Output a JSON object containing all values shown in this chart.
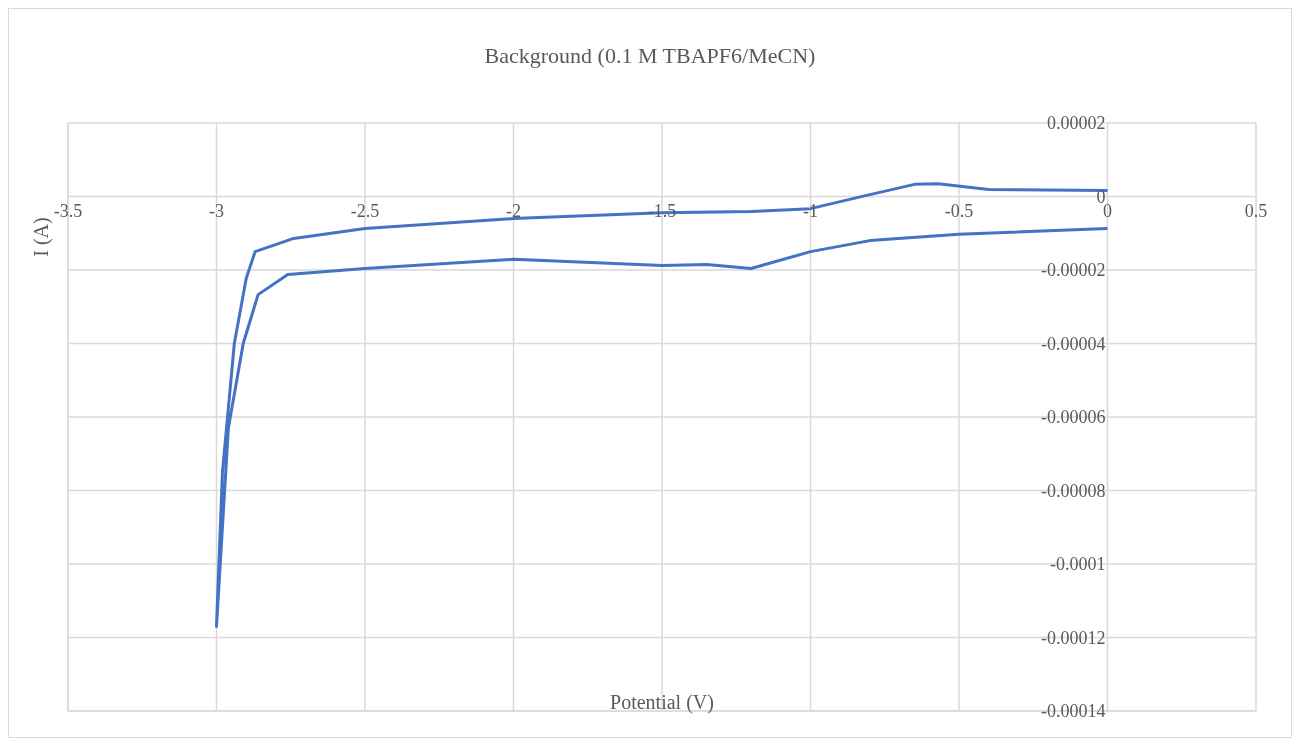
{
  "chart_data": {
    "type": "line",
    "title": "Background (0.1 M TBAPF6/MeCN)",
    "xlabel": "Potential (V)",
    "ylabel": "I (A)",
    "series": [
      {
        "color": "#4472c4",
        "x": [
          0,
          -0.5,
          -0.8,
          -1.0,
          -1.2,
          -1.35,
          -1.5,
          -2.0,
          -2.5,
          -2.76,
          -2.86,
          -2.91,
          -2.96,
          -3.0,
          -2.98,
          -2.94,
          -2.9,
          -2.87,
          -2.74,
          -2.5,
          -2.0,
          -1.5,
          -1.2,
          -1.0,
          -0.8,
          -0.65,
          -0.57,
          -0.4,
          0
        ],
        "values": [
          -8.7e-06,
          -1.03e-05,
          -1.2e-05,
          -1.5e-05,
          -1.96e-05,
          -1.85e-05,
          -1.88e-05,
          -1.71e-05,
          -1.96e-05,
          -2.12e-05,
          -2.67e-05,
          -4e-05,
          -6.3e-05,
          -0.000117,
          -7.5e-05,
          -4e-05,
          -2.23e-05,
          -1.5e-05,
          -1.14e-05,
          -8.7e-06,
          -6e-06,
          -4.4e-06,
          -4.1e-06,
          -3.3e-06,
          5e-07,
          3.3e-06,
          3.5e-06,
          1.9e-06,
          1.6e-06
        ]
      }
    ],
    "xlim": [
      -3.5,
      0.5
    ],
    "xticks": [
      -3.5,
      -3,
      -2.5,
      -2,
      -1.5,
      -1,
      -0.5,
      0,
      0.5
    ],
    "ylim": [
      -0.00014,
      2e-05
    ],
    "yticks": [
      {
        "value": 2e-05,
        "label": "0.00002"
      },
      {
        "value": 0,
        "label": "0"
      },
      {
        "value": -2e-05,
        "label": "-0.00002"
      },
      {
        "value": -4e-05,
        "label": "-0.00004"
      },
      {
        "value": -6e-05,
        "label": "-0.00006"
      },
      {
        "value": -8e-05,
        "label": "-0.00008"
      },
      {
        "value": -0.0001,
        "label": "-0.0001"
      },
      {
        "value": -0.00012,
        "label": "-0.00012"
      },
      {
        "value": -0.00014,
        "label": "-0.00014"
      }
    ],
    "grid": true
  }
}
